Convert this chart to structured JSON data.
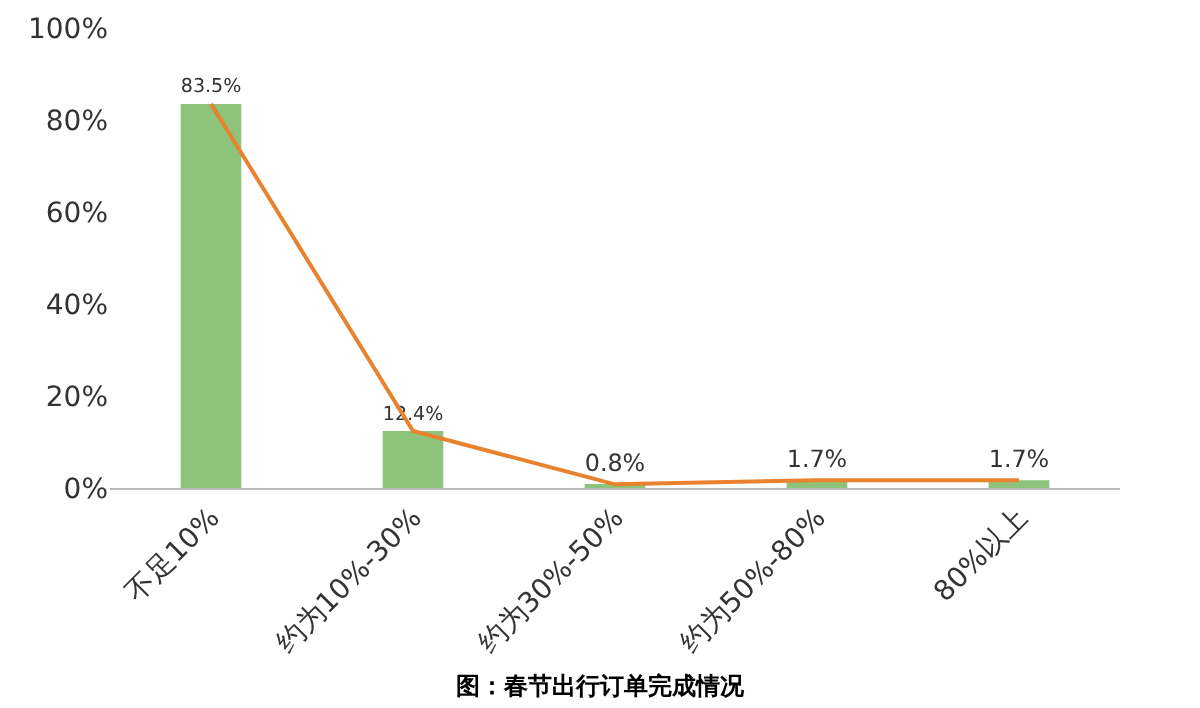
{
  "chart_data": {
    "type": "bar",
    "title": "图：春节出行订单完成情况",
    "categories": [
      "不足10%",
      "约为10%-30%",
      "约为30%-50%",
      "约为50%-80%",
      "80%以上"
    ],
    "series": [
      {
        "color": "#8dc37a",
        "values": [
          83.5,
          12.4,
          0.8,
          1.7,
          1.7
        ],
        "value_labels": [
          "83.5%",
          "12.4%",
          "0.8%",
          "1.7%",
          "1.7%"
        ]
      },
      {
        "type": "line",
        "color": "#e8822e",
        "values": [
          83.5,
          12.4,
          0.8,
          1.7,
          1.7
        ]
      }
    ],
    "ylim": [
      0,
      100
    ],
    "yticks": [
      {
        "value": 0,
        "label": "0%"
      },
      {
        "value": 20,
        "label": "20%"
      },
      {
        "value": 40,
        "label": "40%"
      },
      {
        "value": 60,
        "label": "60%"
      },
      {
        "value": 80,
        "label": "80%"
      },
      {
        "value": 100,
        "label": "100%"
      }
    ],
    "grid": false,
    "marker": "none"
  }
}
